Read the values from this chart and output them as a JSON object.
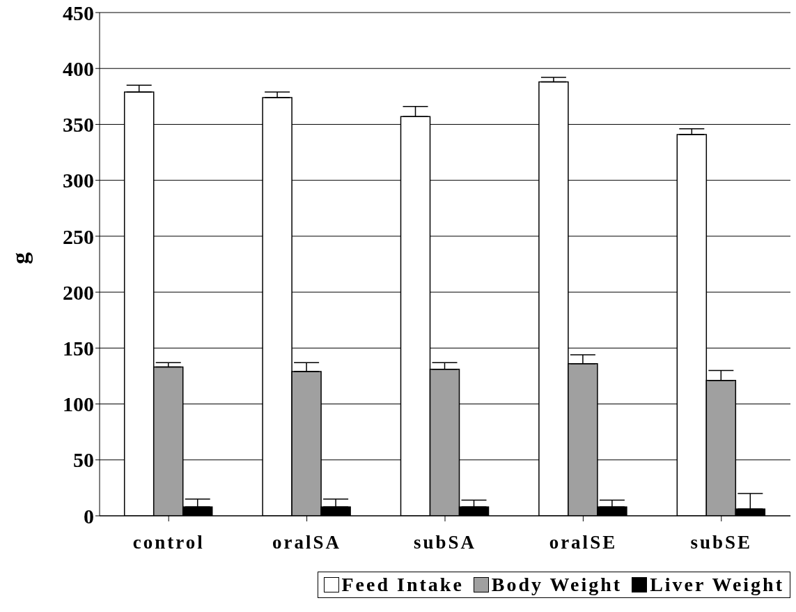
{
  "chart_data": {
    "type": "bar",
    "ylabel": "g",
    "categories": [
      "control",
      "oralSA",
      "subSA",
      "oralSE",
      "subSE"
    ],
    "series": [
      {
        "name": "Feed Intake",
        "color": "#ffffff",
        "values": [
          379,
          374,
          357,
          388,
          341
        ],
        "errors": [
          [
            379,
            385
          ],
          [
            374,
            379
          ],
          [
            357,
            366
          ],
          [
            388,
            392
          ],
          [
            341,
            346
          ]
        ]
      },
      {
        "name": "Body Weight",
        "color": "#a0a0a0",
        "values": [
          133,
          129,
          131,
          136,
          121
        ],
        "errors": [
          [
            133,
            137
          ],
          [
            129,
            137
          ],
          [
            131,
            137
          ],
          [
            136,
            144
          ],
          [
            121,
            130
          ]
        ]
      },
      {
        "name": "Liver Weight",
        "color": "#000000",
        "values": [
          8,
          8,
          8,
          8,
          6
        ],
        "errors": [
          [
            8,
            15
          ],
          [
            8,
            15
          ],
          [
            8,
            14
          ],
          [
            8,
            14
          ],
          [
            6,
            20
          ]
        ]
      }
    ],
    "ylim": [
      0,
      450
    ],
    "yticks": [
      0,
      50,
      100,
      150,
      200,
      250,
      300,
      350,
      400,
      450
    ],
    "grid": "y",
    "legend": "bottom right"
  }
}
